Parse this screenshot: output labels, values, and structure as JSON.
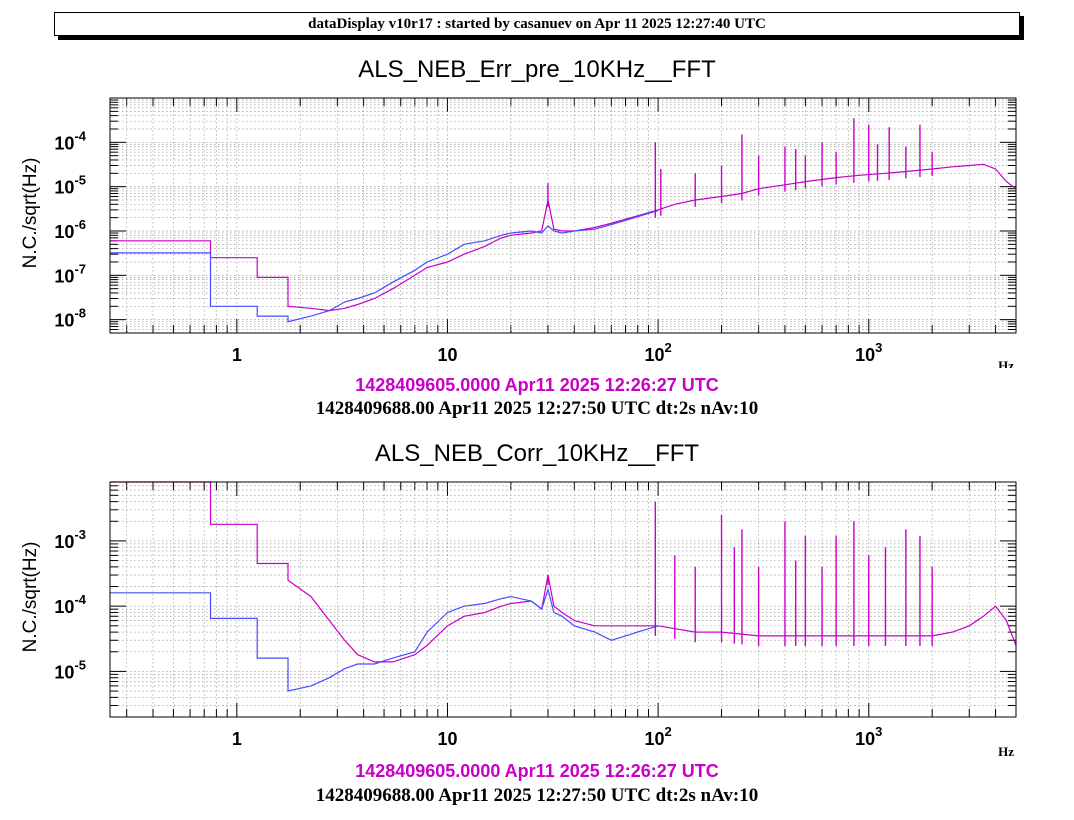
{
  "banner": "dataDisplay v10r17 : started by casanuev on Apr 11 2025 12:27:40 UTC",
  "colors": {
    "ref": "#c800c8",
    "current": "#4a4aff"
  },
  "chart_data": [
    {
      "type": "line",
      "title": "ALS_NEB_Err_pre_10KHz__FFT",
      "ylabel": "N.C./sqrt(Hz)",
      "xlabel": "Hz",
      "xscale": "log",
      "yscale": "log",
      "xlim": [
        0.25,
        5000
      ],
      "ylim": [
        5e-09,
        0.001
      ],
      "grid": true,
      "xticks": [
        {
          "v": 1,
          "base": "1",
          "exp": ""
        },
        {
          "v": 10,
          "base": "10",
          "exp": ""
        },
        {
          "v": 100,
          "base": "10",
          "exp": "2"
        },
        {
          "v": 1000,
          "base": "10",
          "exp": "3"
        }
      ],
      "yticks": [
        {
          "v": 1e-08,
          "base": "10",
          "exp": "-8"
        },
        {
          "v": 1e-07,
          "base": "10",
          "exp": "-7"
        },
        {
          "v": 1e-06,
          "base": "10",
          "exp": "-6"
        },
        {
          "v": 1e-05,
          "base": "10",
          "exp": "-5"
        },
        {
          "v": 0.0001,
          "base": "10",
          "exp": "-4"
        }
      ],
      "series": [
        {
          "color": "#c800c8",
          "x": [
            0.25,
            0.75,
            0.75,
            1.25,
            1.25,
            1.75,
            1.75,
            2.25,
            2.75,
            3.25,
            3.75,
            4.5,
            5.5,
            7,
            8,
            10,
            12,
            15,
            18,
            20,
            25,
            28,
            30,
            32,
            35,
            40,
            50,
            60,
            80,
            100,
            120,
            150,
            200,
            250,
            300,
            400,
            500,
            700,
            900,
            1200,
            1500,
            2000,
            2500,
            3000,
            3500,
            4000,
            4500,
            5000
          ],
          "y": [
            6e-07,
            6e-07,
            2.5e-07,
            2.5e-07,
            9e-08,
            9e-08,
            2e-08,
            1.8e-08,
            1.6e-08,
            1.8e-08,
            2.2e-08,
            3e-08,
            5e-08,
            1e-07,
            1.5e-07,
            2e-07,
            3e-07,
            4.5e-07,
            7e-07,
            8e-07,
            9e-07,
            1e-06,
            5e-06,
            1.1e-06,
            1e-06,
            1e-06,
            1.2e-06,
            1.5e-06,
            2.2e-06,
            3e-06,
            4e-06,
            5e-06,
            6e-06,
            7e-06,
            9e-06,
            1.1e-05,
            1.3e-05,
            1.6e-05,
            1.8e-05,
            2e-05,
            2.2e-05,
            2.5e-05,
            2.8e-05,
            3e-05,
            3.2e-05,
            2.5e-05,
            1.3e-05,
            9e-06
          ]
        },
        {
          "color": "#4a4aff",
          "x": [
            0.25,
            0.75,
            0.75,
            1.25,
            1.25,
            1.75,
            1.75,
            2.25,
            2.75,
            3.25,
            3.75,
            4.5,
            5.5,
            7,
            8,
            10,
            12,
            15,
            18,
            20,
            25,
            28,
            30,
            32,
            35,
            40,
            50,
            60,
            80,
            100
          ],
          "y": [
            3.2e-07,
            3.2e-07,
            2e-08,
            2e-08,
            1.2e-08,
            1.2e-08,
            9e-09,
            1.2e-08,
            1.6e-08,
            2.5e-08,
            3e-08,
            4e-08,
            7e-08,
            1.3e-07,
            2e-07,
            3e-07,
            5e-07,
            6e-07,
            8e-07,
            9e-07,
            1e-06,
            9e-07,
            1.3e-06,
            1e-06,
            9e-07,
            1e-06,
            1.1e-06,
            1.4e-06,
            2.1e-06,
            2.9e-06
          ]
        }
      ],
      "peaks": [
        {
          "x": 30,
          "y": 1.2e-05
        },
        {
          "x": 97,
          "y": 0.0001
        },
        {
          "x": 103,
          "y": 2.5e-05
        },
        {
          "x": 150,
          "y": 2e-05
        },
        {
          "x": 200,
          "y": 3e-05
        },
        {
          "x": 250,
          "y": 0.00015
        },
        {
          "x": 300,
          "y": 5e-05
        },
        {
          "x": 400,
          "y": 8e-05
        },
        {
          "x": 450,
          "y": 7e-05
        },
        {
          "x": 500,
          "y": 5e-05
        },
        {
          "x": 600,
          "y": 0.0001
        },
        {
          "x": 700,
          "y": 6e-05
        },
        {
          "x": 850,
          "y": 0.00035
        },
        {
          "x": 1000,
          "y": 0.00025
        },
        {
          "x": 1100,
          "y": 9e-05
        },
        {
          "x": 1250,
          "y": 0.00022
        },
        {
          "x": 1500,
          "y": 8e-05
        },
        {
          "x": 1750,
          "y": 0.00025
        },
        {
          "x": 2000,
          "y": 6e-05
        }
      ],
      "timestamp_ref": "1428409605.0000 Apr11 2025 12:26:27 UTC",
      "timestamp_cur": "1428409688.00 Apr11 2025 12:27:50 UTC dt:2s nAv:10"
    },
    {
      "type": "line",
      "title": "ALS_NEB_Corr_10KHz__FFT",
      "ylabel": "N.C./sqrt(Hz)",
      "xlabel": "Hz",
      "xscale": "log",
      "yscale": "log",
      "xlim": [
        0.25,
        5000
      ],
      "ylim": [
        2e-06,
        0.008
      ],
      "grid": true,
      "xticks": [
        {
          "v": 1,
          "base": "1",
          "exp": ""
        },
        {
          "v": 10,
          "base": "10",
          "exp": ""
        },
        {
          "v": 100,
          "base": "10",
          "exp": "2"
        },
        {
          "v": 1000,
          "base": "10",
          "exp": "3"
        }
      ],
      "yticks": [
        {
          "v": 1e-05,
          "base": "10",
          "exp": "-5"
        },
        {
          "v": 0.0001,
          "base": "10",
          "exp": "-4"
        },
        {
          "v": 0.001,
          "base": "10",
          "exp": "-3"
        }
      ],
      "series": [
        {
          "color": "#c800c8",
          "x": [
            0.25,
            0.75,
            0.75,
            1.25,
            1.25,
            1.75,
            1.75,
            2.25,
            2.75,
            3.25,
            3.75,
            4.5,
            5.5,
            7,
            8,
            10,
            12,
            15,
            18,
            20,
            25,
            28,
            30,
            32,
            35,
            40,
            50,
            60,
            80,
            100,
            150,
            200,
            300,
            500,
            700,
            1000,
            1500,
            2000,
            2500,
            3000,
            3500,
            4000,
            4500,
            5000
          ],
          "y": [
            0.008,
            0.008,
            0.0018,
            0.0018,
            0.00045,
            0.00045,
            0.00025,
            0.00014,
            6e-05,
            3e-05,
            1.8e-05,
            1.4e-05,
            1.4e-05,
            1.8e-05,
            2.5e-05,
            5e-05,
            7e-05,
            8e-05,
            0.0001,
            0.00011,
            0.00012,
            9e-05,
            0.0003,
            0.0001,
            8e-05,
            6e-05,
            5e-05,
            5e-05,
            5e-05,
            5e-05,
            4e-05,
            4e-05,
            3.5e-05,
            3.5e-05,
            3.5e-05,
            3.5e-05,
            3.5e-05,
            3.5e-05,
            4e-05,
            5e-05,
            7e-05,
            0.0001,
            6e-05,
            2.5e-05
          ]
        },
        {
          "color": "#4a4aff",
          "x": [
            0.25,
            0.75,
            0.75,
            1.25,
            1.25,
            1.75,
            1.75,
            2.25,
            2.75,
            3.25,
            3.75,
            4.5,
            5.5,
            7,
            8,
            10,
            12,
            15,
            18,
            20,
            25,
            28,
            30,
            32,
            35,
            40,
            50,
            60,
            80,
            100
          ],
          "y": [
            0.00016,
            0.00016,
            6.5e-05,
            6.5e-05,
            1.6e-05,
            1.6e-05,
            5e-06,
            6e-06,
            8e-06,
            1.1e-05,
            1.3e-05,
            1.3e-05,
            1.6e-05,
            2e-05,
            4e-05,
            8e-05,
            0.0001,
            0.00011,
            0.00013,
            0.00014,
            0.00012,
            9e-05,
            0.00018,
            8e-05,
            7e-05,
            5e-05,
            4e-05,
            3e-05,
            4e-05,
            5e-05
          ]
        }
      ],
      "peaks": [
        {
          "x": 30,
          "y": 0.0003
        },
        {
          "x": 97,
          "y": 0.004
        },
        {
          "x": 120,
          "y": 0.0006
        },
        {
          "x": 150,
          "y": 0.0004
        },
        {
          "x": 200,
          "y": 0.0025
        },
        {
          "x": 230,
          "y": 0.0008
        },
        {
          "x": 250,
          "y": 0.0015
        },
        {
          "x": 300,
          "y": 0.0004
        },
        {
          "x": 400,
          "y": 0.002
        },
        {
          "x": 450,
          "y": 0.0005
        },
        {
          "x": 500,
          "y": 0.0012
        },
        {
          "x": 600,
          "y": 0.0004
        },
        {
          "x": 700,
          "y": 0.0012
        },
        {
          "x": 850,
          "y": 0.002
        },
        {
          "x": 1000,
          "y": 0.0006
        },
        {
          "x": 1200,
          "y": 0.0008
        },
        {
          "x": 1500,
          "y": 0.0015
        },
        {
          "x": 1750,
          "y": 0.0012
        },
        {
          "x": 2000,
          "y": 0.0004
        }
      ],
      "timestamp_ref": "1428409605.0000 Apr11 2025 12:26:27 UTC",
      "timestamp_cur": "1428409688.00 Apr11 2025 12:27:50 UTC dt:2s nAv:10"
    }
  ]
}
